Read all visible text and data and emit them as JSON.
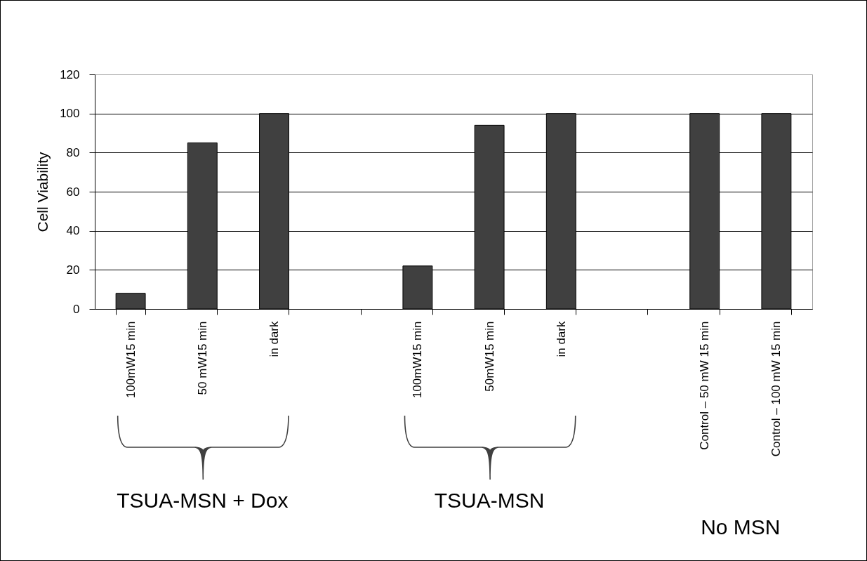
{
  "chart_data": {
    "type": "bar",
    "ylabel": "Cell Viability",
    "categories": [
      "100mW15 min",
      "50 mW15 min",
      "in dark",
      null,
      "100mW15 min",
      "50mW15 min",
      "in dark",
      null,
      "Control – 50 mW 15 min",
      "Control – 100 mW 15 min"
    ],
    "values": [
      8,
      85,
      100,
      null,
      22,
      94,
      100,
      null,
      100,
      100
    ],
    "color": "#404040",
    "ylim": [
      0,
      120
    ],
    "yticks": [
      0,
      20,
      40,
      60,
      80,
      100,
      120
    ],
    "grid": "y",
    "annotations": [
      "TSUA-MSN + Dox",
      "TSUA-MSN",
      "No MSN"
    ]
  }
}
